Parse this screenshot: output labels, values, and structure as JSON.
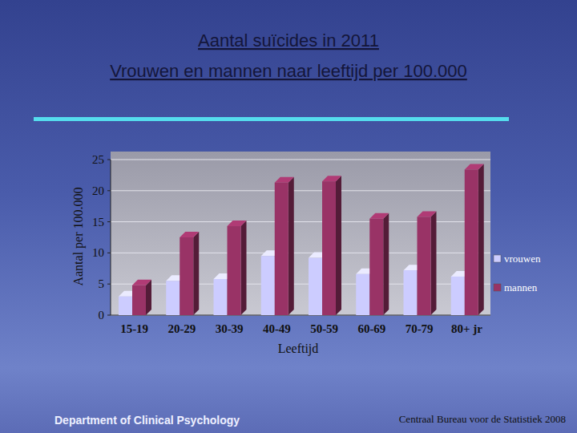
{
  "chart_data": {
    "type": "bar",
    "title": "Aantal suïcides in 2011",
    "subtitle": "Vrouwen en mannen naar leeftijd per 100.000",
    "x_label": "Leeftijd",
    "y_label": "Aantal per 100.000",
    "categories": [
      "15-19",
      "20-29",
      "30-39",
      "40-49",
      "50-59",
      "60-69",
      "70-79",
      "80+ jr"
    ],
    "series": [
      {
        "name": "vrouwen",
        "color": "#ccccff",
        "values": [
          3,
          5.5,
          5.8,
          9.5,
          9.2,
          6.6,
          7.2,
          6.2
        ]
      },
      {
        "name": "mannen",
        "color": "#993366",
        "values": [
          4.8,
          12.5,
          14.3,
          21.3,
          21.5,
          15.5,
          15.8,
          23.4
        ]
      }
    ],
    "ylim": [
      0,
      25
    ],
    "yticks": [
      0,
      5,
      10,
      15,
      20,
      25
    ],
    "grid": true,
    "legend": "right"
  },
  "footer": {
    "department": "Department of Clinical Psychology",
    "source": "Centraal Bureau voor de Statistiek 2008"
  }
}
